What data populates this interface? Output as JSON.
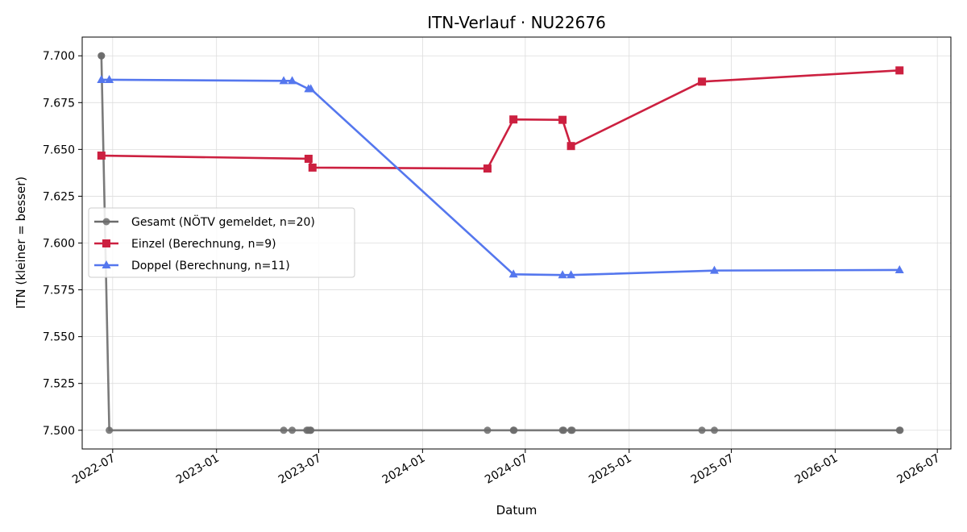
{
  "chart_data": {
    "type": "line",
    "title": "ITN-Verlauf · NU22676",
    "xlabel": "Datum",
    "ylabel": "ITN  (kleiner = besser)",
    "xlim": [
      "2022-05-08",
      "2026-07-25"
    ],
    "ylim": [
      7.49,
      7.71
    ],
    "x_ticks": [
      "2022-07",
      "2023-01",
      "2023-07",
      "2024-01",
      "2024-07",
      "2025-01",
      "2025-07",
      "2026-01",
      "2026-07"
    ],
    "y_ticks": [
      7.5,
      7.525,
      7.55,
      7.575,
      7.6,
      7.625,
      7.65,
      7.675,
      7.7
    ],
    "y_tick_labels": [
      "7.500",
      "7.525",
      "7.550",
      "7.575",
      "7.600",
      "7.625",
      "7.650",
      "7.675",
      "7.700"
    ],
    "grid": true,
    "legend_position": "center-left",
    "series": [
      {
        "name": "Gesamt (NÖTV gemeldet, n=20)",
        "color": "#6b6b6b",
        "marker": "circle",
        "points": [
          {
            "x": "2022-06-11",
            "y": 7.7
          },
          {
            "x": "2022-06-11",
            "y": 7.7
          },
          {
            "x": "2022-06-25",
            "y": 7.5
          },
          {
            "x": "2023-04-30",
            "y": 7.5
          },
          {
            "x": "2023-05-15",
            "y": 7.5
          },
          {
            "x": "2023-06-10",
            "y": 7.5
          },
          {
            "x": "2023-06-13",
            "y": 7.5
          },
          {
            "x": "2023-06-16",
            "y": 7.5
          },
          {
            "x": "2023-06-17",
            "y": 7.5
          },
          {
            "x": "2024-04-25",
            "y": 7.5
          },
          {
            "x": "2024-06-10",
            "y": 7.5
          },
          {
            "x": "2024-06-11",
            "y": 7.5
          },
          {
            "x": "2024-09-05",
            "y": 7.5
          },
          {
            "x": "2024-09-07",
            "y": 7.5
          },
          {
            "x": "2024-09-20",
            "y": 7.5
          },
          {
            "x": "2024-09-22",
            "y": 7.5
          },
          {
            "x": "2025-05-10",
            "y": 7.5
          },
          {
            "x": "2025-06-01",
            "y": 7.5
          },
          {
            "x": "2026-04-25",
            "y": 7.5
          },
          {
            "x": "2026-04-26",
            "y": 7.5
          }
        ]
      },
      {
        "name": "Einzel (Berechnung, n=9)",
        "color": "#cc2040",
        "marker": "square",
        "points": [
          {
            "x": "2022-06-11",
            "y": 7.6467
          },
          {
            "x": "2023-06-13",
            "y": 7.645
          },
          {
            "x": "2023-06-20",
            "y": 7.6403
          },
          {
            "x": "2024-04-25",
            "y": 7.6398
          },
          {
            "x": "2024-06-10",
            "y": 7.666
          },
          {
            "x": "2024-09-05",
            "y": 7.6658
          },
          {
            "x": "2024-09-20",
            "y": 7.6518
          },
          {
            "x": "2025-05-10",
            "y": 7.6862
          },
          {
            "x": "2026-04-25",
            "y": 7.6922
          }
        ]
      },
      {
        "name": "Doppel (Berechnung, n=11)",
        "color": "#5577ee",
        "marker": "triangle",
        "points": [
          {
            "x": "2022-06-11",
            "y": 7.6872
          },
          {
            "x": "2022-06-25",
            "y": 7.6872
          },
          {
            "x": "2023-04-30",
            "y": 7.6866
          },
          {
            "x": "2023-05-15",
            "y": 7.6866
          },
          {
            "x": "2023-06-13",
            "y": 7.6823
          },
          {
            "x": "2023-06-17",
            "y": 7.6823
          },
          {
            "x": "2024-06-10",
            "y": 7.5833
          },
          {
            "x": "2024-09-05",
            "y": 7.5829
          },
          {
            "x": "2024-09-20",
            "y": 7.5829
          },
          {
            "x": "2025-06-01",
            "y": 7.5853
          },
          {
            "x": "2026-04-25",
            "y": 7.5856
          }
        ]
      }
    ]
  }
}
